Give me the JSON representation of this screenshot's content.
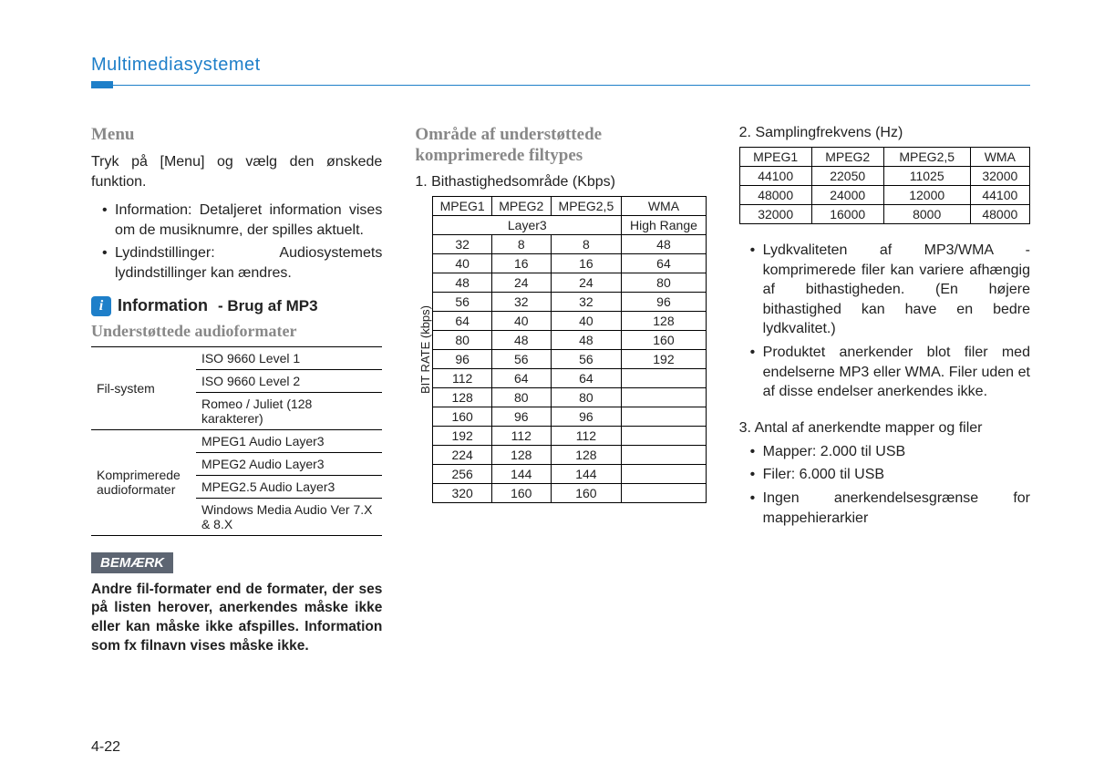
{
  "header": {
    "title": "Multimediasystemet"
  },
  "col1": {
    "menu_heading": "Menu",
    "menu_text": "Tryk på [Menu] og vælg den ønskede funktion.",
    "menu_items": [
      "Information: Detaljeret information vises om de musiknumre, der spilles aktuelt.",
      "Lydindstillinger: Audiosystemets lydindstillinger kan ændres."
    ],
    "info_label": "Information",
    "info_sub": "- Brug af MP3",
    "sub_heading": "Understøttede audioformater",
    "formats": {
      "row1_label": "Fil-system",
      "row1_values": [
        "ISO 9660 Level 1",
        "ISO 9660 Level 2",
        "Romeo / Juliet (128 karakterer)"
      ],
      "row2_label": "Komprimerede audioformater",
      "row2_values": [
        "MPEG1 Audio Layer3",
        "MPEG2 Audio Layer3",
        "MPEG2.5 Audio Layer3",
        "Windows Media Audio Ver 7.X & 8.X"
      ]
    },
    "note_label": "BEMÆRK",
    "note_text": "Andre fil-formater end de formater, der ses på listen herover, anerkendes måske ikke eller kan måske ikke afspilles. Information som fx filnavn vises måske ikke."
  },
  "col2": {
    "heading": "Område af understøttede komprimerede filtypes",
    "sub": "1. Bithastighedsområde (Kbps)",
    "vlabel": "BIT RATE (kbps)",
    "headers": [
      "MPEG1",
      "MPEG2",
      "MPEG2,5",
      "WMA"
    ],
    "sub_headers": [
      "Layer3",
      "High Range"
    ],
    "rows": [
      [
        "32",
        "8",
        "8",
        "48"
      ],
      [
        "40",
        "16",
        "16",
        "64"
      ],
      [
        "48",
        "24",
        "24",
        "80"
      ],
      [
        "56",
        "32",
        "32",
        "96"
      ],
      [
        "64",
        "40",
        "40",
        "128"
      ],
      [
        "80",
        "48",
        "48",
        "160"
      ],
      [
        "96",
        "56",
        "56",
        "192"
      ],
      [
        "112",
        "64",
        "64",
        ""
      ],
      [
        "128",
        "80",
        "80",
        ""
      ],
      [
        "160",
        "96",
        "96",
        ""
      ],
      [
        "192",
        "112",
        "112",
        ""
      ],
      [
        "224",
        "128",
        "128",
        ""
      ],
      [
        "256",
        "144",
        "144",
        ""
      ],
      [
        "320",
        "160",
        "160",
        ""
      ]
    ]
  },
  "col3": {
    "heading": "2. Samplingfrekvens (Hz)",
    "headers": [
      "MPEG1",
      "MPEG2",
      "MPEG2,5",
      "WMA"
    ],
    "rows": [
      [
        "44100",
        "22050",
        "11025",
        "32000"
      ],
      [
        "48000",
        "24000",
        "12000",
        "44100"
      ],
      [
        "32000",
        "16000",
        "8000",
        "48000"
      ]
    ],
    "bullets1": [
      "Lydkvaliteten af MP3/WMA - komprimerede filer kan variere afhængig af bithastigheden. (En højere bithastighed kan have en bedre lydkvalitet.)",
      "Produktet anerkender blot filer med endelserne MP3 eller WMA. Filer uden et af disse endelser anerkendes ikke."
    ],
    "sec3_heading": "3. Antal af anerkendte mapper og filer",
    "bullets2": [
      "Mapper: 2.000 til USB",
      "Filer: 6.000 til USB",
      "Ingen anerkendelsesgrænse for mappehierarkier"
    ]
  },
  "page_number": "4-22"
}
